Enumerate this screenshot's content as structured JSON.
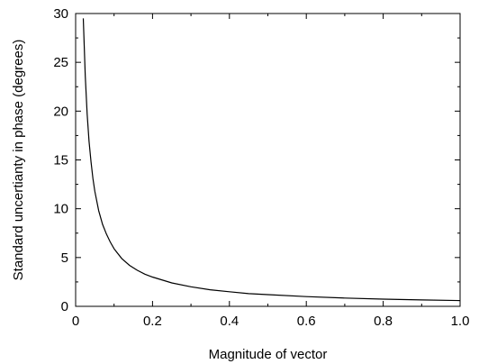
{
  "chart_data": {
    "type": "line",
    "title": "",
    "xlabel": "Magnitude of vector",
    "ylabel": "Standard uncertianty in phase (degrees)",
    "xlim": [
      0,
      1.0
    ],
    "ylim": [
      0,
      30
    ],
    "grid": false,
    "x_ticks": [
      0,
      0.2,
      0.4,
      0.6,
      0.8,
      1.0
    ],
    "x_tick_labels": [
      "0",
      "0.2",
      "0.4",
      "0.6",
      "0.8",
      "1.0"
    ],
    "y_ticks": [
      0,
      5,
      10,
      15,
      20,
      25,
      30
    ],
    "y_tick_labels": [
      "0",
      "5",
      "10",
      "15",
      "20",
      "25",
      "30"
    ],
    "series": [
      {
        "color": "#000000",
        "x": [
          0.02,
          0.025,
          0.03,
          0.035,
          0.04,
          0.045,
          0.05,
          0.06,
          0.07,
          0.08,
          0.09,
          0.1,
          0.12,
          0.14,
          0.16,
          0.18,
          0.2,
          0.25,
          0.3,
          0.35,
          0.4,
          0.45,
          0.5,
          0.6,
          0.7,
          0.8,
          0.9,
          1.0
        ],
        "y": [
          29.5,
          23.6,
          19.7,
          16.9,
          14.8,
          13.1,
          11.8,
          9.8,
          8.4,
          7.4,
          6.6,
          5.9,
          4.9,
          4.2,
          3.7,
          3.3,
          3.0,
          2.4,
          2.0,
          1.7,
          1.5,
          1.3,
          1.2,
          1.0,
          0.85,
          0.74,
          0.66,
          0.59
        ]
      }
    ]
  }
}
